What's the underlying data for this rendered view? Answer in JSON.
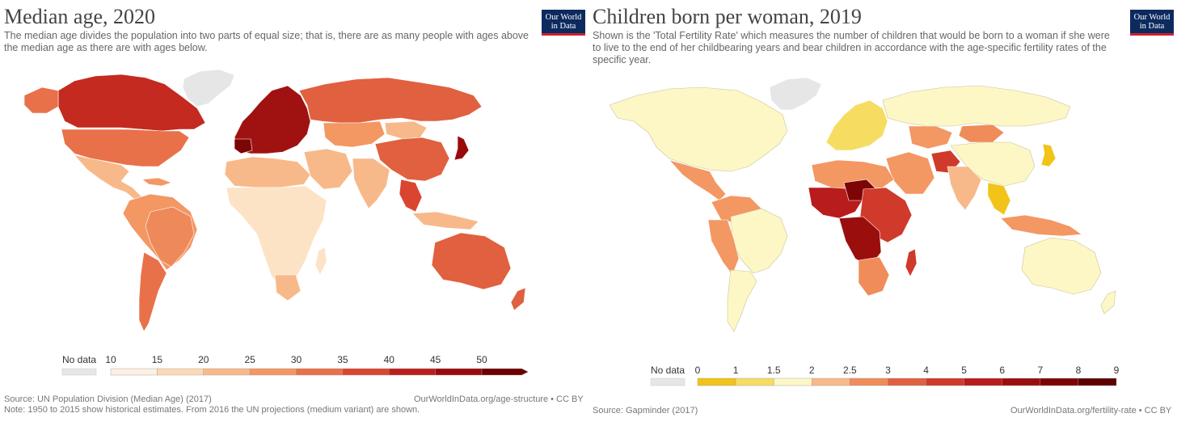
{
  "left": {
    "title": "Median age, 2020",
    "subtitle": "The median age divides the population into two parts of equal size; that is, there are as many people with ages above the median age as there are with ages below.",
    "logo": {
      "line1": "Our World",
      "line2": "in Data"
    },
    "legend": {
      "no_data_label": "No data",
      "ticks": [
        "10",
        "15",
        "20",
        "25",
        "30",
        "35",
        "40",
        "45",
        "50"
      ],
      "colors": [
        "#fdf0e2",
        "#fcd9b6",
        "#f8b98a",
        "#f39763",
        "#e8714a",
        "#d9452f",
        "#bd1d1c",
        "#9a0a0a",
        "#6e0000"
      ]
    },
    "source": "Source: UN Population Division (Median Age) (2017)",
    "note": "Note: 1950 to 2015 show historical estimates. From 2016 the UN projections (medium variant) are shown.",
    "link": "OurWorldInData.org/age-structure • CC BY"
  },
  "right": {
    "title": "Children born per woman, 2019",
    "subtitle": "Shown is the 'Total Fertility Rate' which measures the number of children that would be born to a woman if she were to live to the end of her childbearing years and bear children in accordance with the age-specific fertility rates of the specific year.",
    "logo": {
      "line1": "Our World",
      "line2": "in Data"
    },
    "legend": {
      "no_data_label": "No data",
      "ticks": [
        "0",
        "1",
        "1.5",
        "2",
        "2.5",
        "3",
        "4",
        "5",
        "6",
        "7",
        "8",
        "9"
      ],
      "colors": [
        "#f2c318",
        "#f7dc62",
        "#fdf7c6",
        "#f8b98a",
        "#f08c5a",
        "#e0603f",
        "#cf3a2a",
        "#b81c1c",
        "#9a0e0e",
        "#7d0505",
        "#5c0000"
      ]
    },
    "source": "Source: Gapminder (2017)",
    "link": "OurWorldInData.org/fertility-rate • CC BY"
  },
  "colors": {
    "no_data": "#e6e6e6",
    "border": "#ffffff"
  }
}
